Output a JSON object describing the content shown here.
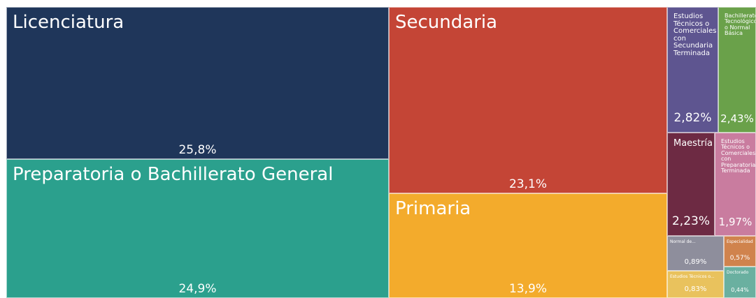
{
  "chart_data": {
    "type": "treemap",
    "categories": [
      "Licenciatura",
      "Preparatoria o Bachillerato General",
      "Secundaria",
      "Primaria",
      "Estudios Técnicos o Comerciales con Secundaria Terminada",
      "Bachillerato Tecnológico o Normal Básica",
      "Maestría",
      "Estudios Técnicos o Comerciales con Preparatoria Terminada",
      "Normal de...",
      "Especialidad",
      "Estudios Técnicos o...",
      "Doctorado"
    ],
    "values": [
      25.8,
      24.9,
      23.1,
      13.9,
      2.82,
      2.43,
      2.23,
      1.97,
      0.89,
      0.57,
      0.83,
      0.44
    ],
    "value_labels": [
      "25,8%",
      "24,9%",
      "23,1%",
      "13,9%",
      "2,82%",
      "2,43%",
      "2,23%",
      "1,97%",
      "0,89%",
      "0,57%",
      "0,83%",
      "0,44%"
    ],
    "colors": [
      "#1f365a",
      "#2ba08d",
      "#c44536",
      "#f3ab2c",
      "#5e5590",
      "#6aa14a",
      "#6d2a43",
      "#c97c9f",
      "#8e8e9c",
      "#d0834d",
      "#e9c25d",
      "#6ab0a0"
    ]
  }
}
